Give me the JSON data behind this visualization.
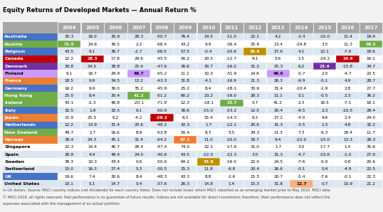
{
  "title": "Equity Returns of Developed Markets — Annual Return %",
  "years": [
    2004,
    2005,
    2006,
    2007,
    2008,
    2009,
    2010,
    2011,
    2012,
    2013,
    2014,
    2015,
    2016,
    2017
  ],
  "countries": [
    "Australia",
    "Austria",
    "Belgium",
    "Canada",
    "Denmark",
    "Finland",
    "France",
    "Germany",
    "Hong Kong",
    "Ireland",
    "Italy",
    "Japan",
    "Netherlands",
    "New Zealand",
    "Norway",
    "Singapore",
    "Spain",
    "Sweden",
    "Switzerland",
    "UK",
    "United States"
  ],
  "country_colors": [
    "#4472c4",
    "#70ad47",
    "#4472c4",
    "#c00000",
    "#7030a0",
    "#cc99ff",
    "#ed7d31",
    "#4472c4",
    "#70ad47",
    "#70ad47",
    "#4472c4",
    "#ed7d31",
    "#4472c4",
    "#70ad47",
    "#ed7d31",
    null,
    null,
    null,
    null,
    "#4472c4",
    null
  ],
  "country_text_colors": [
    "#ffffff",
    "#ffffff",
    "#ffffff",
    "#ffffff",
    "#ffffff",
    "#000000",
    "#ffffff",
    "#ffffff",
    "#ffffff",
    "#ffffff",
    "#ffffff",
    "#ffffff",
    "#ffffff",
    "#ffffff",
    "#ffffff",
    "#000000",
    "#000000",
    "#000000",
    "#000000",
    "#ffffff",
    "#000000"
  ],
  "data": [
    [
      30.3,
      16.0,
      30.9,
      28.3,
      -50.7,
      76.4,
      14.5,
      -11.0,
      22.1,
      4.2,
      -3.4,
      -10.0,
      11.4,
      19.9
    ],
    [
      71.5,
      24.6,
      36.5,
      2.2,
      -68.4,
      43.2,
      9.9,
      -36.4,
      25.9,
      13.4,
      -29.8,
      3.5,
      11.3,
      58.3
    ],
    [
      43.5,
      9.1,
      36.7,
      -2.7,
      -66.5,
      57.5,
      -0.4,
      -10.6,
      39.6,
      27.6,
      4.1,
      12.1,
      -7.6,
      18.6
    ],
    [
      22.2,
      28.3,
      17.8,
      29.6,
      -45.5,
      56.2,
      20.5,
      -12.7,
      9.1,
      5.6,
      1.5,
      -24.2,
      24.6,
      16.1
    ],
    [
      30.8,
      24.5,
      38.8,
      25.6,
      -47.6,
      36.6,
      30.7,
      -16.0,
      31.3,
      25.3,
      6.2,
      23.4,
      -15.8,
      34.7
    ],
    [
      6.1,
      16.7,
      29.9,
      48.7,
      -55.2,
      11.1,
      10.3,
      -31.9,
      14.6,
      46.0,
      -0.7,
      2.0,
      -4.7,
      22.5
    ],
    [
      18.5,
      9.9,
      34.5,
      13.2,
      -43.3,
      31.8,
      -4.1,
      -16.9,
      21.3,
      26.3,
      -9.9,
      -0.1,
      4.9,
      28.7
    ],
    [
      16.2,
      9.9,
      36.0,
      35.2,
      -45.9,
      25.2,
      8.4,
      -18.1,
      30.9,
      31.4,
      -10.4,
      -1.9,
      2.8,
      27.7
    ],
    [
      25.0,
      8.4,
      30.4,
      41.2,
      -51.2,
      60.2,
      23.2,
      -16.0,
      28.3,
      11.1,
      5.1,
      -0.5,
      2.3,
      36.2
    ],
    [
      43.1,
      -2.3,
      46.8,
      -20.1,
      -71.9,
      12.3,
      -18.1,
      13.7,
      5.7,
      41.2,
      2.3,
      16.5,
      -7.1,
      18.1
    ],
    [
      32.5,
      1.9,
      32.5,
      6.1,
      -50.0,
      36.6,
      -15.0,
      -23.2,
      12.5,
      20.4,
      -9.5,
      2.3,
      -10.5,
      28.4
    ],
    [
      15.9,
      25.5,
      6.2,
      -4.2,
      -29.2,
      6.3,
      15.4,
      -14.3,
      8.2,
      27.2,
      -4.0,
      9.6,
      2.4,
      24.0
    ],
    [
      12.2,
      13.9,
      31.4,
      20.6,
      -48.2,
      42.3,
      1.7,
      -12.1,
      20.6,
      31.3,
      -3.5,
      1.3,
      4.8,
      32.2
    ],
    [
      49.7,
      1.7,
      16.6,
      8.9,
      -53.8,
      50.4,
      8.3,
      5.5,
      29.3,
      11.3,
      7.3,
      -6.3,
      18.4,
      11.7
    ],
    [
      38.4,
      24.3,
      45.1,
      31.4,
      -64.2,
      87.1,
      11.0,
      -10.0,
      18.7,
      9.4,
      -22.0,
      -15.0,
      13.3,
      28.3
    ],
    [
      22.3,
      14.4,
      46.7,
      28.4,
      -47.4,
      74.0,
      22.1,
      -17.9,
      31.0,
      1.7,
      3.0,
      -17.7,
      1.4,
      35.6
    ],
    [
      28.9,
      4.4,
      49.4,
      24.0,
      -40.6,
      43.5,
      -22.0,
      -12.3,
      3.0,
      31.3,
      -4.7,
      -15.6,
      -1.0,
      27.0
    ],
    [
      36.3,
      10.3,
      43.4,
      0.6,
      -50.0,
      64.2,
      33.8,
      -16.0,
      22.0,
      24.5,
      -7.6,
      -5.0,
      0.6,
      20.6
    ],
    [
      15.0,
      16.3,
      27.4,
      5.3,
      -30.5,
      25.3,
      11.8,
      -6.8,
      20.4,
      26.6,
      -0.1,
      0.4,
      -4.9,
      22.5
    ],
    [
      19.6,
      7.4,
      30.6,
      8.4,
      -48.3,
      43.3,
      8.8,
      -2.6,
      15.3,
      20.7,
      -5.4,
      -7.6,
      -0.1,
      22.3
    ],
    [
      10.1,
      5.1,
      14.7,
      5.4,
      -37.6,
      26.3,
      14.8,
      1.4,
      15.3,
      31.8,
      12.7,
      0.7,
      10.9,
      21.2
    ]
  ],
  "highlights": {
    "1_0": {
      "color": "#70ad47",
      "text_color": "#ffffff"
    },
    "3_1": {
      "color": "#c00000",
      "text_color": "#ffffff"
    },
    "5_3": {
      "color": "#cc99ff",
      "text_color": "#000000"
    },
    "2_8": {
      "color": "#bf8f00",
      "text_color": "#ffffff"
    },
    "5_9": {
      "color": "#cc99ff",
      "text_color": "#000000"
    },
    "9_7": {
      "color": "#70ad47",
      "text_color": "#ffffff"
    },
    "8_3": {
      "color": "#70ad47",
      "text_color": "#ffffff"
    },
    "14_5": {
      "color": "#ed7d31",
      "text_color": "#ffffff"
    },
    "11_4": {
      "color": "#c00000",
      "text_color": "#ffffff"
    },
    "4_11": {
      "color": "#7030a0",
      "text_color": "#ffffff"
    },
    "3_12": {
      "color": "#c00000",
      "text_color": "#ffffff"
    },
    "1_13": {
      "color": "#70ad47",
      "text_color": "#ffffff"
    },
    "20_10": {
      "color": "#f4b183",
      "text_color": "#000000"
    },
    "17_6": {
      "color": "#bf8f00",
      "text_color": "#ffffff"
    }
  },
  "footnote1": "In US dollars. Source: MSCI country indices (net dividends) for each country listed. Does not include Israel, which MSCI classified as an emerging market prior to May 2010. MSCI data",
  "footnote2": "© MSCI 2018, all rights reserved. Past performance is no guarantee of future results. Indices are not available for direct investment; therefore, their performance does not reflect the",
  "footnote3": "expenses associated with the management of an actual portfolio.",
  "bg_color": "#f2f2f2",
  "header_color": "#a6a6a6",
  "row_colors": [
    "#dce6f1",
    "#ffffff"
  ]
}
